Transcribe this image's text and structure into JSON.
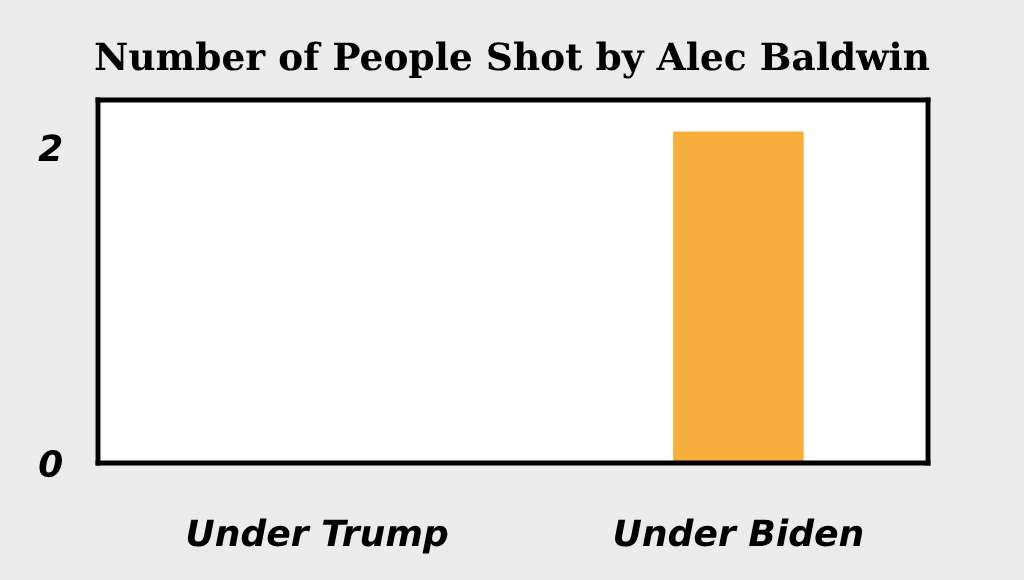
{
  "chart_data": {
    "type": "bar",
    "title": "Number of People Shot by Alec Baldwin",
    "categories": [
      "Under Trump",
      "Under Biden"
    ],
    "values": [
      0,
      2.1
    ],
    "color": "#f8ae3c",
    "ylim": [
      0,
      2.3
    ],
    "yticks": [
      0,
      2
    ],
    "grid": false,
    "legend": false
  }
}
